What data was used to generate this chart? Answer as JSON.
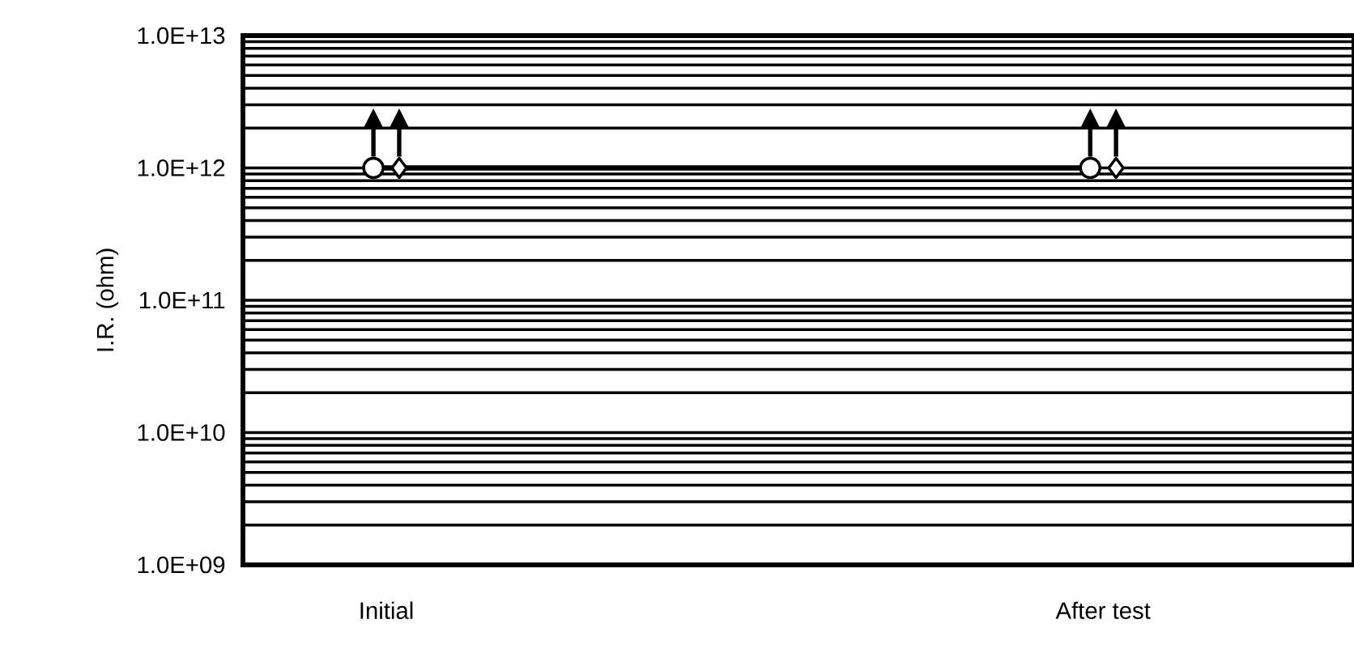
{
  "chart_data": {
    "type": "line",
    "ylabel": "I.R.  (ohm)",
    "categories": [
      "Initial",
      "After test"
    ],
    "log": "y",
    "grid": "y",
    "ylim": [
      1000000000.0,
      10000000000000.0
    ],
    "yticks": [
      {
        "value": 1000000000.0,
        "label": "1.0E+09"
      },
      {
        "value": 2000000000.0,
        "label": null
      },
      {
        "value": 3000000000.0,
        "label": null
      },
      {
        "value": 4000000000.0,
        "label": null
      },
      {
        "value": 5000000000.0,
        "label": null
      },
      {
        "value": 6000000000.0,
        "label": null
      },
      {
        "value": 7000000000.0,
        "label": null
      },
      {
        "value": 8000000000.0,
        "label": null
      },
      {
        "value": 9000000000.0,
        "label": null
      },
      {
        "value": 10000000000.0,
        "label": "1.0E+10"
      },
      {
        "value": 20000000000.0,
        "label": null
      },
      {
        "value": 30000000000.0,
        "label": null
      },
      {
        "value": 40000000000.0,
        "label": null
      },
      {
        "value": 50000000000.0,
        "label": null
      },
      {
        "value": 60000000000.0,
        "label": null
      },
      {
        "value": 70000000000.0,
        "label": null
      },
      {
        "value": 80000000000.0,
        "label": null
      },
      {
        "value": 90000000000.0,
        "label": null
      },
      {
        "value": 100000000000.0,
        "label": "1.0E+11"
      },
      {
        "value": 200000000000.0,
        "label": null
      },
      {
        "value": 300000000000.0,
        "label": null
      },
      {
        "value": 400000000000.0,
        "label": null
      },
      {
        "value": 500000000000.0,
        "label": null
      },
      {
        "value": 600000000000.0,
        "label": null
      },
      {
        "value": 700000000000.0,
        "label": null
      },
      {
        "value": 800000000000.0,
        "label": null
      },
      {
        "value": 900000000000.0,
        "label": null
      },
      {
        "value": 1000000000000.0,
        "label": "1.0E+12"
      },
      {
        "value": 2000000000000.0,
        "label": null
      },
      {
        "value": 3000000000000.0,
        "label": null
      },
      {
        "value": 4000000000000.0,
        "label": null
      },
      {
        "value": 5000000000000.0,
        "label": null
      },
      {
        "value": 6000000000000.0,
        "label": null
      },
      {
        "value": 7000000000000.0,
        "label": null
      },
      {
        "value": 8000000000000.0,
        "label": null
      },
      {
        "value": 9000000000000.0,
        "label": null
      },
      {
        "value": 10000000000000.0,
        "label": "1.0E+13"
      }
    ],
    "series": [
      {
        "color": "#000000",
        "marker": "circle",
        "values": [
          1000000000000.0,
          1000000000000.0
        ]
      },
      {
        "type": "scatter",
        "color": "#000000",
        "marker": "diamond",
        "values": [
          1000000000000.0,
          1000000000000.0
        ]
      }
    ]
  }
}
